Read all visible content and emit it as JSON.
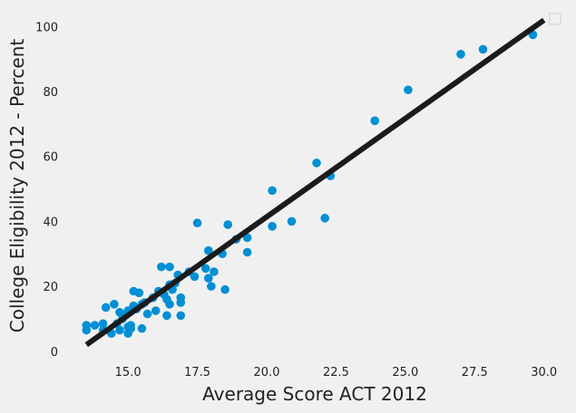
{
  "chart_data": {
    "type": "scatter",
    "xlabel": "Average Score ACT 2012",
    "ylabel": "College Eligibility 2012 - Percent",
    "xlim": [
      13.0,
      30.5
    ],
    "ylim": [
      -2,
      104
    ],
    "x_ticks": [
      "15.0",
      "17.5",
      "20.0",
      "22.5",
      "25.0",
      "27.5",
      "30.0"
    ],
    "y_ticks": [
      "0",
      "20",
      "40",
      "60",
      "80",
      "100"
    ],
    "grid": false,
    "legend": "top-right (empty)",
    "marker_color": "#008fd5",
    "line_color": "#1b1b1b",
    "points": [
      [
        13.5,
        8.0
      ],
      [
        13.5,
        6.5
      ],
      [
        13.8,
        8.0
      ],
      [
        14.1,
        8.5
      ],
      [
        14.1,
        6.5
      ],
      [
        14.2,
        13.5
      ],
      [
        14.4,
        5.5
      ],
      [
        14.5,
        14.5
      ],
      [
        14.6,
        8.5
      ],
      [
        14.7,
        12.0
      ],
      [
        14.7,
        6.5
      ],
      [
        14.8,
        10.0
      ],
      [
        14.9,
        11.0
      ],
      [
        15.0,
        12.5
      ],
      [
        15.0,
        7.5
      ],
      [
        15.0,
        5.5
      ],
      [
        15.1,
        8.0
      ],
      [
        15.1,
        7.0
      ],
      [
        15.2,
        14.0
      ],
      [
        15.2,
        18.5
      ],
      [
        15.3,
        13.0
      ],
      [
        15.4,
        18.0
      ],
      [
        15.5,
        14.5
      ],
      [
        15.5,
        7.0
      ],
      [
        15.6,
        15.0
      ],
      [
        15.7,
        11.5
      ],
      [
        15.9,
        16.5
      ],
      [
        16.0,
        12.5
      ],
      [
        16.1,
        18.5
      ],
      [
        16.2,
        26.0
      ],
      [
        16.3,
        17.5
      ],
      [
        16.4,
        16.0
      ],
      [
        16.4,
        11.0
      ],
      [
        16.5,
        26.0
      ],
      [
        16.5,
        14.5
      ],
      [
        16.5,
        20.5
      ],
      [
        16.6,
        19.0
      ],
      [
        16.7,
        21.0
      ],
      [
        16.8,
        23.5
      ],
      [
        16.9,
        16.5
      ],
      [
        16.9,
        15.0
      ],
      [
        16.9,
        11.0
      ],
      [
        17.2,
        24.5
      ],
      [
        17.4,
        23.0
      ],
      [
        17.5,
        39.5
      ],
      [
        17.8,
        25.5
      ],
      [
        17.9,
        31.0
      ],
      [
        17.9,
        22.5
      ],
      [
        18.0,
        20.0
      ],
      [
        18.1,
        24.5
      ],
      [
        18.4,
        30.0
      ],
      [
        18.5,
        19.0
      ],
      [
        18.6,
        39.0
      ],
      [
        18.9,
        34.5
      ],
      [
        19.3,
        35.0
      ],
      [
        19.3,
        30.5
      ],
      [
        20.2,
        49.5
      ],
      [
        20.2,
        38.5
      ],
      [
        20.9,
        40.0
      ],
      [
        21.8,
        58.0
      ],
      [
        22.1,
        41.0
      ],
      [
        22.3,
        54.0
      ],
      [
        23.9,
        71.0
      ],
      [
        25.1,
        80.5
      ],
      [
        27.0,
        91.5
      ],
      [
        27.8,
        93.0
      ],
      [
        29.6,
        97.5
      ]
    ],
    "fit_line": [
      [
        13.5,
        2.0
      ],
      [
        30.0,
        102.0
      ]
    ]
  }
}
